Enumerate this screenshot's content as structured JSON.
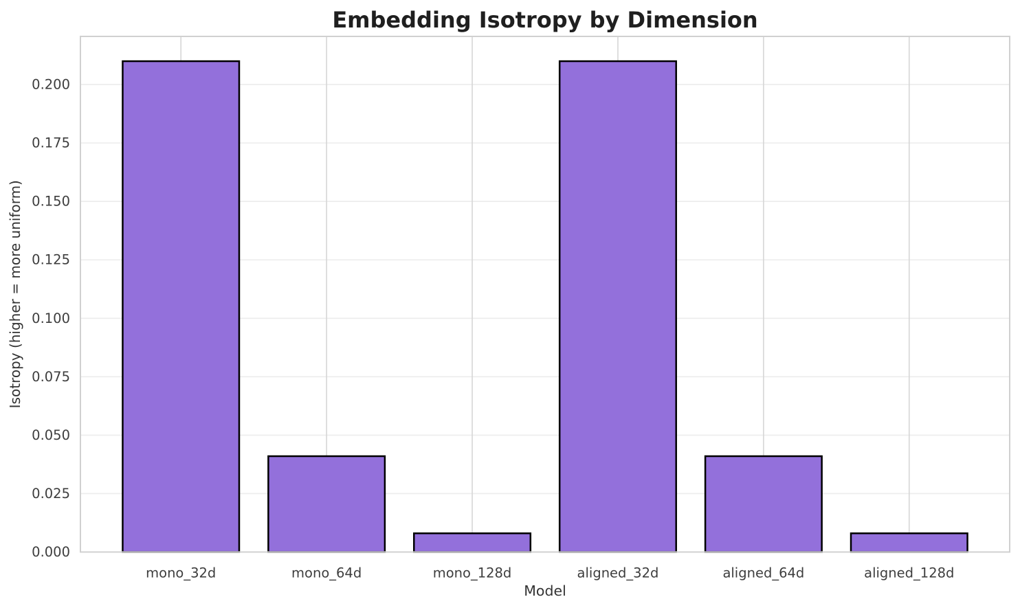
{
  "chart_data": {
    "type": "bar",
    "title": "Embedding Isotropy by Dimension",
    "xlabel": "Model",
    "ylabel": "Isotropy (higher = more uniform)",
    "categories": [
      "mono_32d",
      "mono_64d",
      "mono_128d",
      "aligned_32d",
      "aligned_64d",
      "aligned_128d"
    ],
    "values": [
      0.21,
      0.041,
      0.008,
      0.21,
      0.041,
      0.008
    ],
    "yticks": [
      0.0,
      0.025,
      0.05,
      0.075,
      0.1,
      0.125,
      0.15,
      0.175,
      0.2
    ],
    "ytick_labels": [
      "0.000",
      "0.025",
      "0.050",
      "0.075",
      "0.100",
      "0.125",
      "0.150",
      "0.175",
      "0.200"
    ],
    "ylim": [
      0,
      0.2206
    ],
    "grid": true,
    "legend": "none",
    "bar_width_frac": 0.8,
    "colors": {
      "bar_fill": "#9370DB",
      "bar_edge": "#000000",
      "spine": "#d0d0d0",
      "grid_horizontal": "#ececec",
      "grid_vertical": "#d6d6d6",
      "title_text": "#1f1f1f",
      "tick_text": "#3d3d3d",
      "label_text": "#333333"
    }
  }
}
